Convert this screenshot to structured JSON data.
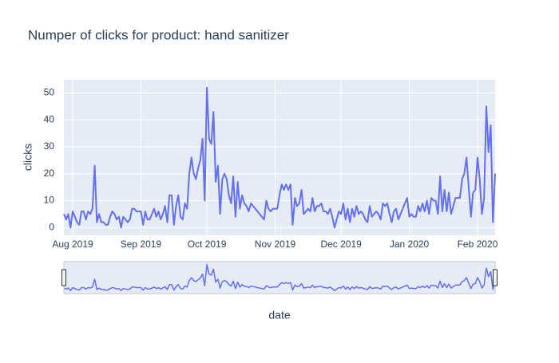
{
  "chart_data": {
    "type": "line",
    "title": "Numper of clicks for product: hand sanitizer",
    "xlabel": "date",
    "ylabel": "clicks",
    "x": [
      "2019-07-28",
      "2019-07-29",
      "2019-07-30",
      "2019-07-31",
      "2019-08-01",
      "2019-08-02",
      "2019-08-03",
      "2019-08-04",
      "2019-08-05",
      "2019-08-06",
      "2019-08-07",
      "2019-08-08",
      "2019-08-09",
      "2019-08-10",
      "2019-08-11",
      "2019-08-12",
      "2019-08-13",
      "2019-08-14",
      "2019-08-15",
      "2019-08-16",
      "2019-08-17",
      "2019-08-18",
      "2019-08-19",
      "2019-08-20",
      "2019-08-21",
      "2019-08-22",
      "2019-08-23",
      "2019-08-24",
      "2019-08-25",
      "2019-08-26",
      "2019-08-27",
      "2019-08-28",
      "2019-08-29",
      "2019-08-30",
      "2019-08-31",
      "2019-09-01",
      "2019-09-02",
      "2019-09-03",
      "2019-09-04",
      "2019-09-05",
      "2019-09-06",
      "2019-09-07",
      "2019-09-08",
      "2019-09-09",
      "2019-09-10",
      "2019-09-11",
      "2019-09-12",
      "2019-09-13",
      "2019-09-14",
      "2019-09-15",
      "2019-09-16",
      "2019-09-17",
      "2019-09-18",
      "2019-09-19",
      "2019-09-20",
      "2019-09-21",
      "2019-09-22",
      "2019-09-23",
      "2019-09-24",
      "2019-09-25",
      "2019-09-26",
      "2019-09-27",
      "2019-09-28",
      "2019-09-29",
      "2019-09-30",
      "2019-10-01",
      "2019-10-02",
      "2019-10-03",
      "2019-10-04",
      "2019-10-05",
      "2019-10-06",
      "2019-10-07",
      "2019-10-08",
      "2019-10-09",
      "2019-10-10",
      "2019-10-11",
      "2019-10-12",
      "2019-10-13",
      "2019-10-14",
      "2019-10-15",
      "2019-10-16",
      "2019-10-17",
      "2019-10-18",
      "2019-10-19",
      "2019-10-20",
      "2019-10-21",
      "2019-10-22",
      "2019-10-23",
      "2019-10-24",
      "2019-10-25",
      "2019-10-26",
      "2019-10-27",
      "2019-10-28",
      "2019-10-29",
      "2019-10-30",
      "2019-10-31",
      "2019-11-01",
      "2019-11-02",
      "2019-11-03",
      "2019-11-04",
      "2019-11-05",
      "2019-11-06",
      "2019-11-07",
      "2019-11-08",
      "2019-11-09",
      "2019-11-10",
      "2019-11-11",
      "2019-11-12",
      "2019-11-13",
      "2019-11-14",
      "2019-11-15",
      "2019-11-16",
      "2019-11-17",
      "2019-11-18",
      "2019-11-19",
      "2019-11-20",
      "2019-11-21",
      "2019-11-22",
      "2019-11-23",
      "2019-11-24",
      "2019-11-25",
      "2019-11-26",
      "2019-11-27",
      "2019-11-28",
      "2019-11-29",
      "2019-11-30",
      "2019-12-01",
      "2019-12-02",
      "2019-12-03",
      "2019-12-04",
      "2019-12-05",
      "2019-12-06",
      "2019-12-07",
      "2019-12-08",
      "2019-12-09",
      "2019-12-10",
      "2019-12-11",
      "2019-12-12",
      "2019-12-13",
      "2019-12-14",
      "2019-12-15",
      "2019-12-16",
      "2019-12-17",
      "2019-12-18",
      "2019-12-19",
      "2019-12-20",
      "2019-12-21",
      "2019-12-22",
      "2019-12-23",
      "2019-12-24",
      "2019-12-25",
      "2019-12-26",
      "2019-12-27",
      "2019-12-28",
      "2019-12-29",
      "2019-12-30",
      "2019-12-31",
      "2020-01-01",
      "2020-01-02",
      "2020-01-03",
      "2020-01-04",
      "2020-01-05",
      "2020-01-06",
      "2020-01-07",
      "2020-01-08",
      "2020-01-09",
      "2020-01-10",
      "2020-01-11",
      "2020-01-12",
      "2020-01-13",
      "2020-01-14",
      "2020-01-15",
      "2020-01-16",
      "2020-01-17",
      "2020-01-18",
      "2020-01-19",
      "2020-01-20",
      "2020-01-21",
      "2020-01-22",
      "2020-01-23",
      "2020-01-24",
      "2020-01-25",
      "2020-01-26",
      "2020-01-27",
      "2020-01-28",
      "2020-01-29",
      "2020-01-30",
      "2020-01-31",
      "2020-02-01",
      "2020-02-02",
      "2020-02-03",
      "2020-02-04",
      "2020-02-05",
      "2020-02-06",
      "2020-02-07",
      "2020-02-08",
      "2020-02-09"
    ],
    "series": [
      {
        "name": "clicks",
        "color": "#636efa",
        "values": [
          5,
          3,
          5,
          0,
          6,
          4,
          2,
          1,
          6,
          6,
          3,
          6,
          5,
          7,
          23,
          2,
          5,
          2,
          2,
          1,
          1,
          4,
          6,
          5,
          3,
          4,
          0,
          4,
          3,
          2,
          3,
          7,
          7,
          6,
          6,
          6,
          1,
          6,
          3,
          3,
          5,
          7,
          4,
          6,
          3,
          5,
          8,
          2,
          12,
          12,
          1,
          8,
          12,
          4,
          3,
          9,
          7,
          20,
          26,
          20,
          18,
          22,
          25,
          33,
          10,
          52,
          33,
          31,
          43,
          17,
          23,
          5,
          18,
          20,
          18,
          12,
          9,
          19,
          4,
          17,
          7,
          12,
          9,
          8,
          6,
          9,
          8,
          7,
          6,
          5,
          4,
          3,
          10,
          7,
          6,
          7,
          7,
          7,
          12,
          16,
          14,
          16,
          14,
          16,
          1,
          11,
          8,
          9,
          14,
          5,
          6,
          7,
          6,
          11,
          6,
          8,
          8,
          9,
          6,
          6,
          5,
          7,
          4,
          0,
          3,
          6,
          5,
          9,
          3,
          7,
          2,
          7,
          4,
          8,
          5,
          6,
          5,
          3,
          2,
          8,
          4,
          5,
          6,
          5,
          3,
          9,
          8,
          9,
          5,
          2,
          6,
          7,
          3,
          5,
          7,
          9,
          11,
          4,
          5,
          4,
          4,
          8,
          6,
          9,
          6,
          10,
          5,
          11,
          10,
          10,
          5,
          19,
          6,
          14,
          6,
          13,
          5,
          8,
          11,
          11,
          11,
          18,
          20,
          26,
          15,
          4,
          13,
          14,
          26,
          18,
          5,
          11,
          45,
          28,
          38,
          2,
          20
        ]
      }
    ],
    "xlim": [
      "2019-07-28",
      "2020-02-09"
    ],
    "xticks": [
      {
        "value": "2019-08-01",
        "label": "Aug 2019"
      },
      {
        "value": "2019-09-01",
        "label": "Sep 2019"
      },
      {
        "value": "2019-10-01",
        "label": "Oct 2019"
      },
      {
        "value": "2019-11-01",
        "label": "Nov 2019"
      },
      {
        "value": "2019-12-01",
        "label": "Dec 2019"
      },
      {
        "value": "2020-01-01",
        "label": "Jan 2020"
      },
      {
        "value": "2020-02-01",
        "label": "Feb 2020"
      }
    ],
    "ylim": [
      -2.9,
      54.9
    ],
    "yticks": [
      0,
      10,
      20,
      30,
      40,
      50
    ],
    "grid": true,
    "range_slider": true
  }
}
